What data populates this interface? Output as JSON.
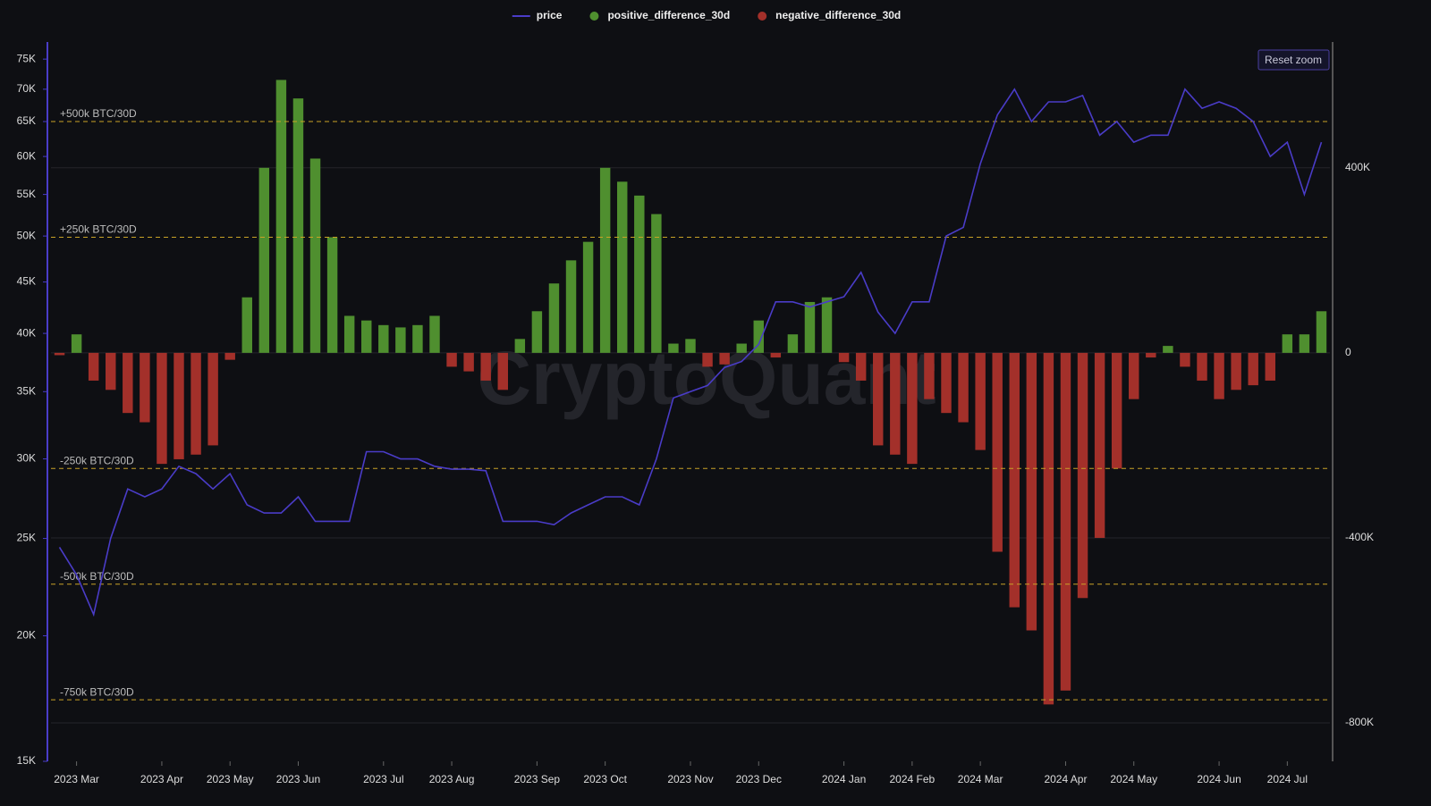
{
  "chart_data": {
    "type": "combo",
    "categories": [
      null,
      "2023 Mar",
      null,
      null,
      null,
      null,
      "2023 Apr",
      null,
      null,
      null,
      "2023 May",
      null,
      null,
      null,
      "2023 Jun",
      null,
      null,
      null,
      null,
      "2023 Jul",
      null,
      null,
      null,
      "2023 Aug",
      null,
      null,
      null,
      null,
      "2023 Sep",
      null,
      null,
      null,
      "2023 Oct",
      null,
      null,
      null,
      null,
      "2023 Nov",
      null,
      null,
      null,
      "2023 Dec",
      null,
      null,
      null,
      null,
      "2024 Jan",
      null,
      null,
      null,
      "2024 Feb",
      null,
      null,
      null,
      "2024 Mar",
      null,
      null,
      null,
      null,
      "2024 Apr",
      null,
      null,
      null,
      "2024 May",
      null,
      null,
      null,
      null,
      "2024 Jun",
      null,
      null,
      null,
      "2024 Jul",
      null,
      null
    ],
    "series": [
      {
        "name": "price",
        "type": "line",
        "axis": "y",
        "color": "#4a3cc8",
        "values": [
          24500,
          23000,
          21000,
          25000,
          28000,
          27500,
          28000,
          29500,
          29000,
          28000,
          29000,
          27000,
          26500,
          26500,
          27500,
          26000,
          26000,
          26000,
          30500,
          30500,
          30000,
          30000,
          29500,
          29300,
          29300,
          29200,
          26000,
          26000,
          26000,
          25800,
          26500,
          27000,
          27500,
          27500,
          27000,
          30000,
          34500,
          35000,
          35500,
          37000,
          37500,
          39000,
          43000,
          43000,
          42500,
          43000,
          43500,
          46000,
          42000,
          40000,
          43000,
          43000,
          50000,
          51000,
          59000,
          66000,
          70000,
          65000,
          68000,
          68000,
          69000,
          63000,
          65000,
          62000,
          63000,
          63000,
          70000,
          67000,
          68000,
          67000,
          65000,
          60000,
          62000,
          55000,
          62000
        ]
      },
      {
        "name": "positive_difference_30d",
        "type": "bar",
        "axis": "y2",
        "color": "#4f8f2f",
        "values": [
          null,
          40000,
          null,
          null,
          null,
          null,
          null,
          null,
          null,
          null,
          null,
          120000,
          400000,
          590000,
          550000,
          420000,
          250000,
          80000,
          70000,
          60000,
          55000,
          60000,
          80000,
          null,
          null,
          null,
          null,
          30000,
          90000,
          150000,
          200000,
          240000,
          400000,
          370000,
          340000,
          300000,
          20000,
          30000,
          null,
          null,
          20000,
          70000,
          null,
          40000,
          110000,
          120000,
          null,
          null,
          null,
          null,
          null,
          null,
          null,
          null,
          null,
          null,
          null,
          null,
          null,
          null,
          null,
          null,
          null,
          null,
          null,
          15000,
          null,
          null,
          null,
          null,
          null,
          null,
          40000,
          40000,
          90000
        ]
      },
      {
        "name": "negative_difference_30d",
        "type": "bar",
        "axis": "y2",
        "color": "#a3302a",
        "values": [
          -5000,
          null,
          -60000,
          -80000,
          -130000,
          -150000,
          -240000,
          -230000,
          -220000,
          -200000,
          -15000,
          null,
          null,
          null,
          null,
          null,
          null,
          null,
          null,
          null,
          null,
          null,
          null,
          -30000,
          -40000,
          -60000,
          -80000,
          null,
          null,
          null,
          null,
          null,
          null,
          null,
          null,
          null,
          null,
          null,
          -30000,
          -25000,
          null,
          null,
          -10000,
          null,
          null,
          null,
          -20000,
          -60000,
          -200000,
          -220000,
          -240000,
          -100000,
          -130000,
          -150000,
          -210000,
          -430000,
          -550000,
          -600000,
          -760000,
          -730000,
          -530000,
          -400000,
          -250000,
          -100000,
          -10000,
          null,
          -30000,
          -60000,
          -100000,
          -80000,
          -70000,
          -60000,
          null,
          null,
          null
        ]
      }
    ],
    "ylim": [
      15000,
      78000
    ],
    "y_log_scale": true,
    "yticks": [
      {
        "value": 15000,
        "label": "15K"
      },
      {
        "value": 20000,
        "label": "20K"
      },
      {
        "value": 25000,
        "label": "25K"
      },
      {
        "value": 30000,
        "label": "30K"
      },
      {
        "value": 35000,
        "label": "35K"
      },
      {
        "value": 40000,
        "label": "40K"
      },
      {
        "value": 45000,
        "label": "45K"
      },
      {
        "value": 50000,
        "label": "50K"
      },
      {
        "value": 55000,
        "label": "55K"
      },
      {
        "value": 60000,
        "label": "60K"
      },
      {
        "value": 65000,
        "label": "65K"
      },
      {
        "value": 70000,
        "label": "70K"
      },
      {
        "value": 75000,
        "label": "75K"
      }
    ],
    "y2lim": [
      -883000,
      672000
    ],
    "y2ticks": [
      {
        "value": 400000,
        "label": "400K"
      },
      0,
      {
        "value": -400000,
        "label": "-400K"
      },
      {
        "value": -800000,
        "label": "-800K"
      }
    ],
    "grid": true,
    "reference_lines": [
      {
        "value": 500000,
        "label": "+500k BTC/30D"
      },
      {
        "value": 250000,
        "label": "+250k BTC/30D"
      },
      {
        "value": -250000,
        "label": "-250k BTC/30D"
      },
      {
        "value": -500000,
        "label": "-500k BTC/30D"
      },
      {
        "value": -750000,
        "label": "-750k BTC/30D"
      }
    ],
    "reference_color": "#c9a227",
    "legend": "top",
    "reset_button": "Reset zoom",
    "watermark": "CryptoQuant"
  }
}
